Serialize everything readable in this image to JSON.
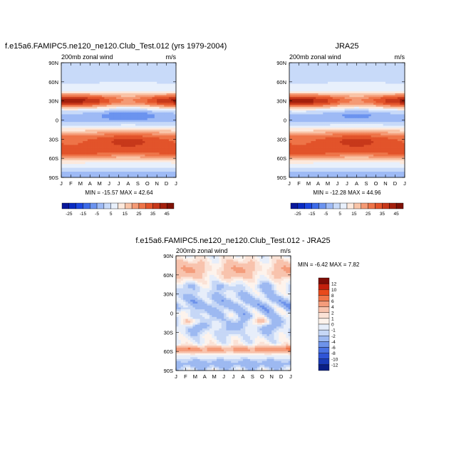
{
  "chart_data": [
    {
      "id": "model",
      "type": "heatmap",
      "title": "f.e15a6.FAMIPC5.ne120_ne120.Club_Test.012 (yrs 1979-2004)",
      "subtitle_left": "200mb zonal wind",
      "subtitle_right": "m/s",
      "x_ticks": [
        "J",
        "F",
        "M",
        "A",
        "M",
        "J",
        "J",
        "A",
        "S",
        "O",
        "N",
        "D",
        "J"
      ],
      "y_ticks": [
        "90S",
        "60S",
        "30S",
        "0",
        "30N",
        "60N",
        "90N"
      ],
      "xlim": [
        0,
        12
      ],
      "ylim": [
        -90,
        90
      ],
      "stats": "MIN = -15.57 MAX =  42.64",
      "colorbar_labels": [
        "-25",
        "-15",
        "-5",
        "5",
        "15",
        "25",
        "35",
        "45"
      ],
      "field": "full"
    },
    {
      "id": "obs",
      "type": "heatmap",
      "title": "JRA25",
      "subtitle_left": "200mb zonal wind",
      "subtitle_right": "m/s",
      "x_ticks": [
        "J",
        "F",
        "M",
        "A",
        "M",
        "J",
        "J",
        "A",
        "S",
        "O",
        "N",
        "D",
        "J"
      ],
      "y_ticks": [
        "90S",
        "60S",
        "30S",
        "0",
        "30N",
        "60N",
        "90N"
      ],
      "xlim": [
        0,
        12
      ],
      "ylim": [
        -90,
        90
      ],
      "stats": "MIN = -12.28 MAX =  44.96",
      "colorbar_labels": [
        "-25",
        "-15",
        "-5",
        "5",
        "15",
        "25",
        "35",
        "45"
      ],
      "field": "full"
    },
    {
      "id": "diff",
      "type": "heatmap",
      "title": "f.e15a6.FAMIPC5.ne120_ne120.Club_Test.012 - JRA25",
      "subtitle_left": "200mb zonal wind",
      "subtitle_right": "m/s",
      "x_ticks": [
        "J",
        "F",
        "M",
        "A",
        "M",
        "J",
        "J",
        "A",
        "S",
        "O",
        "N",
        "D",
        "J"
      ],
      "y_ticks": [
        "90S",
        "60S",
        "30S",
        "0",
        "30N",
        "60N",
        "90N"
      ],
      "xlim": [
        0,
        12
      ],
      "ylim": [
        -90,
        90
      ],
      "stats": "MIN =  -6.42 MAX =   7.82",
      "colorbar_labels": [
        "12",
        "10",
        "8",
        "6",
        "4",
        "2",
        "1",
        "0",
        "-1",
        "-2",
        "-4",
        "-6",
        "-8",
        "-10",
        "-12"
      ],
      "field": "diff"
    }
  ],
  "colors": {
    "full_palette": [
      "#08179b",
      "#0a2bc2",
      "#1c47e0",
      "#3d6be8",
      "#6b93ef",
      "#9ebaf5",
      "#c8daf9",
      "#e8f0fc",
      "#fde9dc",
      "#f9c4a7",
      "#f49a75",
      "#ee7448",
      "#e2532a",
      "#c7381a",
      "#a4200d",
      "#7f1106"
    ],
    "diff_palette": [
      "#7f0d06",
      "#c3200c",
      "#e84a1c",
      "#f07549",
      "#f49c7b",
      "#f8c3ad",
      "#fbe2d6",
      "#fdf3ec",
      "#e7eefa",
      "#c6d7f6",
      "#9db9f1",
      "#6e93ea",
      "#4a72e3",
      "#2f54d6",
      "#1a3bb8",
      "#0a1f86"
    ]
  }
}
